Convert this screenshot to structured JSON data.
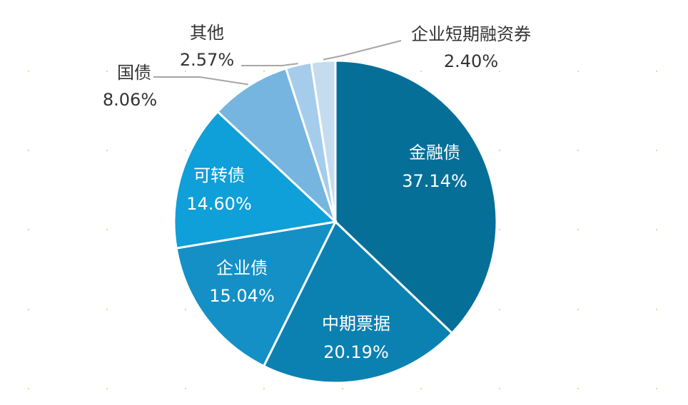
{
  "chart_data": {
    "type": "pie",
    "title": "",
    "slices": [
      {
        "name": "金融债",
        "value": 37.14,
        "value_label": "37.14%",
        "color": "#066f98"
      },
      {
        "name": "中期票据",
        "value": 20.19,
        "value_label": "20.19%",
        "color": "#0a81b1"
      },
      {
        "name": "企业债",
        "value": 15.04,
        "value_label": "15.04%",
        "color": "#1490c6"
      },
      {
        "name": "可转债",
        "value": 14.6,
        "value_label": "14.60%",
        "color": "#0f9fd9"
      },
      {
        "name": "国债",
        "value": 8.06,
        "value_label": "8.06%",
        "color": "#75b5df"
      },
      {
        "name": "其他",
        "value": 2.57,
        "value_label": "2.57%",
        "color": "#a6cceb"
      },
      {
        "name": "企业短期融资券",
        "value": 2.4,
        "value_label": "2.40%",
        "color": "#c5dcef"
      }
    ],
    "start_angle_deg": 0,
    "direction": "clockwise",
    "legend": "none"
  }
}
